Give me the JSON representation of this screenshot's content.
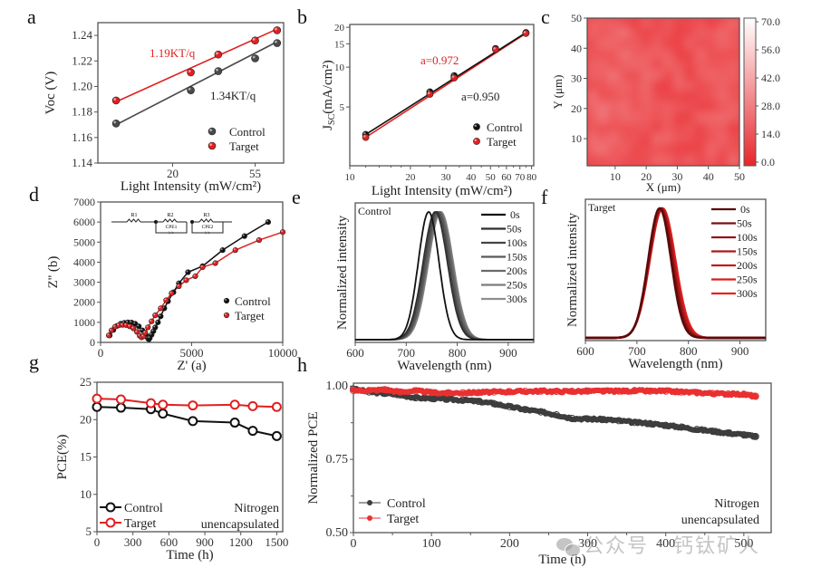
{
  "panel_letters": [
    "a",
    "b",
    "c",
    "d",
    "e",
    "f",
    "g",
    "h"
  ],
  "watermark": "公众号 · 钙钛矿人",
  "colors": {
    "control": "#3a3a3a",
    "target": "#e02020",
    "axis": "#555555",
    "control_dark": "#111111"
  },
  "chart_data": [
    {
      "id": "a",
      "type": "scatter",
      "title": "",
      "xlabel": "Light Intensity (mW/cm²)",
      "ylabel": "Voc (V)",
      "xscale": "log",
      "xlim": [
        8,
        78
      ],
      "ylim": [
        1.14,
        1.25
      ],
      "xticks": [
        20,
        55
      ],
      "yticks": [
        1.14,
        1.16,
        1.18,
        1.2,
        1.22,
        1.24
      ],
      "ytick_labels": [
        "1.14",
        "1.16",
        "1.18",
        "1.20",
        "1.22",
        "1.24"
      ],
      "series": [
        {
          "name": "Control",
          "color": "#4a4a4a",
          "x": [
            10,
            25,
            35,
            55,
            72
          ],
          "y": [
            1.171,
            1.197,
            1.212,
            1.222,
            1.234
          ],
          "fit": [
            1.17,
            1.235
          ]
        },
        {
          "name": "Target",
          "color": "#e02020",
          "x": [
            10,
            25,
            35,
            55,
            72
          ],
          "y": [
            1.189,
            1.211,
            1.225,
            1.236,
            1.244
          ],
          "fit": [
            1.188,
            1.245
          ]
        }
      ],
      "annotations": [
        {
          "text": "1.19KT/q",
          "color": "#e02020"
        },
        {
          "text": "1.34KT/q",
          "color": "#222222"
        }
      ],
      "legend": "bottom-right"
    },
    {
      "id": "b",
      "type": "scatter",
      "xlabel": "Light Intensity (mW/cm²)",
      "ylabel": "JSC(mA/cm²)",
      "ylabel_main": "J",
      "ylabel_sub": "SC",
      "ylabel_rest": "(mA/cm²)",
      "xscale": "log",
      "yscale": "log",
      "xlim": [
        10,
        82
      ],
      "ylim": [
        1.8,
        21
      ],
      "xticks": [
        10,
        20,
        30,
        40,
        50,
        60,
        70,
        80
      ],
      "yticks": [
        5,
        10,
        15,
        20
      ],
      "series": [
        {
          "name": "Control",
          "color": "#111111",
          "x": [
            12,
            25,
            33,
            53,
            75
          ],
          "y": [
            3.1,
            6.5,
            8.6,
            13.8,
            18.2
          ]
        },
        {
          "name": "Target",
          "color": "#e02020",
          "x": [
            12,
            25,
            33,
            53,
            75
          ],
          "y": [
            2.95,
            6.25,
            8.3,
            13.6,
            18.0
          ]
        }
      ],
      "annotations": [
        {
          "text": "a=0.972",
          "color": "#e02020"
        },
        {
          "text": "a=0.950",
          "color": "#222222"
        }
      ],
      "legend": "bottom-right"
    },
    {
      "id": "c",
      "type": "heatmap",
      "xlabel": "X (μm)",
      "ylabel": "Y (μm)",
      "xlim": [
        1,
        50
      ],
      "ylim": [
        1,
        50
      ],
      "xticks": [
        10,
        20,
        30,
        40,
        50
      ],
      "yticks": [
        10,
        20,
        30,
        40,
        50
      ],
      "colorbar_ticks": [
        "0.0",
        "14.0",
        "28.0",
        "42.0",
        "56.0",
        "70.0"
      ],
      "colorbar_range": [
        0,
        70
      ],
      "colormap": [
        "#e8262b",
        "#ffffff"
      ],
      "value_range_observed": [
        8,
        22
      ]
    },
    {
      "id": "d",
      "type": "scatter",
      "xlabel": "Z' (a)",
      "ylabel": "Z'' (b)",
      "xlim": [
        0,
        10000
      ],
      "ylim": [
        0,
        7000
      ],
      "xticks": [
        0,
        5000,
        10000
      ],
      "yticks": [
        0,
        1000,
        2000,
        3000,
        4000,
        5000,
        6000,
        7000
      ],
      "circuit_labels": [
        "R1",
        "R2",
        "R3",
        "CPE1",
        "CPE2"
      ],
      "series": [
        {
          "name": "Control",
          "color": "#111111",
          "x": [
            500,
            700,
            900,
            1100,
            1300,
            1500,
            1700,
            1900,
            2100,
            2300,
            2500,
            2600,
            2650,
            2700,
            2800,
            2900,
            3000,
            3150,
            3300,
            3500,
            3700,
            4000,
            4300,
            4800,
            5600,
            6700,
            7900,
            9200
          ],
          "y": [
            350,
            620,
            820,
            930,
            980,
            1000,
            990,
            930,
            800,
            600,
            350,
            200,
            150,
            220,
            380,
            560,
            750,
            1000,
            1300,
            1700,
            2050,
            2500,
            2950,
            3500,
            3800,
            4600,
            5300,
            6000
          ]
        },
        {
          "name": "Target",
          "color": "#e02020",
          "x": [
            450,
            600,
            800,
            1000,
            1200,
            1400,
            1600,
            1800,
            2000,
            2150,
            2250,
            2350,
            2450,
            2600,
            2800,
            3000,
            3300,
            3600,
            3900,
            4300,
            4700,
            5200,
            5600,
            6300,
            7400,
            8700,
            10000
          ],
          "y": [
            350,
            600,
            780,
            850,
            870,
            860,
            800,
            700,
            520,
            330,
            250,
            300,
            480,
            750,
            1050,
            1350,
            1700,
            2100,
            2450,
            2800,
            3100,
            3300,
            3750,
            3950,
            4600,
            5100,
            5500
          ]
        }
      ],
      "legend": "bottom-right"
    },
    {
      "id": "e",
      "type": "line",
      "title": "Control",
      "xlabel": "Wavelength (nm)",
      "ylabel": "Normalized intensity",
      "xlim": [
        600,
        950
      ],
      "ylim": [
        0,
        1.07
      ],
      "xticks": [
        600,
        700,
        800,
        900
      ],
      "series": [
        {
          "name": "0s",
          "color": "#111111",
          "peak": 744,
          "fwhm": 48
        },
        {
          "name": "50s",
          "color": "#2e2e2e",
          "peak": 757,
          "fwhm": 56
        },
        {
          "name": "100s",
          "color": "#444444",
          "peak": 760,
          "fwhm": 56
        },
        {
          "name": "150s",
          "color": "#5a5a5a",
          "peak": 763,
          "fwhm": 56
        },
        {
          "name": "200s",
          "color": "#6a6a6a",
          "peak": 765,
          "fwhm": 57
        },
        {
          "name": "250s",
          "color": "#7c7c7c",
          "peak": 767,
          "fwhm": 57
        },
        {
          "name": "300s",
          "color": "#8e8e8e",
          "peak": 768,
          "fwhm": 57
        }
      ],
      "legend": "top-right"
    },
    {
      "id": "f",
      "type": "line",
      "title": "Target",
      "xlabel": "Wavelength (nm)",
      "ylabel": "Normalized intensity",
      "xlim": [
        600,
        950
      ],
      "ylim": [
        0,
        1.07
      ],
      "xticks": [
        600,
        700,
        800,
        900
      ],
      "series": [
        {
          "name": "0s",
          "color": "#5a0a0a",
          "peak": 744,
          "fwhm": 52
        },
        {
          "name": "50s",
          "color": "#7a1010",
          "peak": 745,
          "fwhm": 53
        },
        {
          "name": "100s",
          "color": "#941414",
          "peak": 746,
          "fwhm": 54
        },
        {
          "name": "150s",
          "color": "#ad1818",
          "peak": 747,
          "fwhm": 55
        },
        {
          "name": "200s",
          "color": "#c21b1b",
          "peak": 748,
          "fwhm": 56
        },
        {
          "name": "250s",
          "color": "#d61e1e",
          "peak": 749,
          "fwhm": 57
        },
        {
          "name": "300s",
          "color": "#e82222",
          "peak": 750,
          "fwhm": 58
        }
      ],
      "legend": "top-right"
    },
    {
      "id": "g",
      "type": "line",
      "xlabel": "Time (h)",
      "ylabel": "PCE(%)",
      "xlim": [
        0,
        1550
      ],
      "ylim": [
        5,
        25
      ],
      "xticks": [
        0,
        300,
        600,
        900,
        1200,
        1500
      ],
      "yticks": [
        5,
        10,
        15,
        20,
        25
      ],
      "series": [
        {
          "name": "Control",
          "color": "#111111",
          "x": [
            0,
            200,
            450,
            550,
            800,
            1150,
            1300,
            1500
          ],
          "y": [
            21.7,
            21.6,
            21.4,
            20.8,
            19.8,
            19.6,
            18.5,
            17.8
          ]
        },
        {
          "name": "Target",
          "color": "#e02020",
          "x": [
            0,
            200,
            450,
            550,
            800,
            1150,
            1300,
            1500
          ],
          "y": [
            22.8,
            22.7,
            22.2,
            22.0,
            21.9,
            22.0,
            21.8,
            21.7
          ]
        }
      ],
      "annotation": [
        "Nitrogen",
        "unencapsulated"
      ],
      "legend": "bottom-left"
    },
    {
      "id": "h",
      "type": "scatter",
      "xlabel": "Time (h)",
      "ylabel": "Normalized PCE",
      "xlim": [
        0,
        535
      ],
      "ylim": [
        0.5,
        1.01
      ],
      "xticks": [
        0,
        100,
        200,
        300,
        400,
        500
      ],
      "yticks": [
        0.5,
        0.75,
        1.0
      ],
      "ytick_labels": [
        "0.50",
        "0.75",
        "1.00"
      ],
      "series": [
        {
          "name": "Control",
          "color": "#3d3d3d",
          "x": [
            0,
            20,
            40,
            60,
            80,
            100,
            120,
            140,
            160,
            180,
            200,
            220,
            240,
            260,
            280,
            300,
            320,
            340,
            360,
            380,
            400,
            420,
            440,
            460,
            480,
            500,
            515
          ],
          "y": [
            0.99,
            0.98,
            0.975,
            0.97,
            0.96,
            0.958,
            0.955,
            0.952,
            0.948,
            0.94,
            0.93,
            0.92,
            0.912,
            0.902,
            0.89,
            0.888,
            0.886,
            0.882,
            0.876,
            0.872,
            0.866,
            0.86,
            0.852,
            0.846,
            0.84,
            0.834,
            0.828
          ]
        },
        {
          "name": "Target",
          "color": "#e83030",
          "x": [
            0,
            20,
            40,
            60,
            80,
            100,
            120,
            140,
            160,
            180,
            200,
            220,
            240,
            260,
            280,
            300,
            320,
            340,
            360,
            380,
            400,
            420,
            440,
            460,
            480,
            500,
            515
          ],
          "y": [
            0.985,
            0.985,
            0.988,
            0.98,
            0.984,
            0.978,
            0.976,
            0.977,
            0.978,
            0.98,
            0.981,
            0.982,
            0.983,
            0.982,
            0.982,
            0.983,
            0.983,
            0.983,
            0.984,
            0.983,
            0.983,
            0.98,
            0.978,
            0.975,
            0.973,
            0.972,
            0.965
          ]
        }
      ],
      "annotation": [
        "Nitrogen",
        "unencapsulated"
      ],
      "legend": "bottom-left"
    }
  ]
}
